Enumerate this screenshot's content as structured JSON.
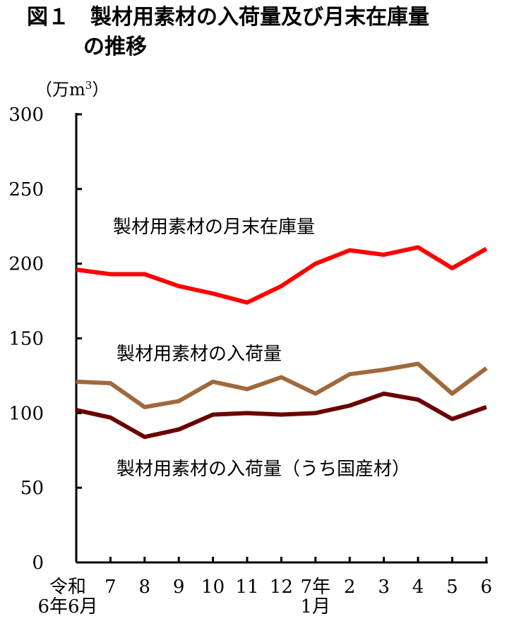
{
  "chart_data": {
    "type": "line",
    "title_line1": "図１　製材用素材の入荷量及び月末在庫量",
    "title_line2": "の推移",
    "unit": "（万m",
    "unit_sup": "3",
    "unit_close": "）",
    "ylim": [
      0,
      300
    ],
    "yticks": [
      "0",
      "50",
      "100",
      "150",
      "200",
      "250",
      "300"
    ],
    "categories": [
      [
        "令和",
        "6年6月"
      ],
      [
        "7"
      ],
      [
        "8"
      ],
      [
        "9"
      ],
      [
        "10"
      ],
      [
        "11"
      ],
      [
        "12"
      ],
      [
        "7年",
        "1月"
      ],
      [
        "2"
      ],
      [
        "3"
      ],
      [
        "4"
      ],
      [
        "5"
      ],
      [
        "6"
      ]
    ],
    "series": [
      {
        "name": "製材用素材の月末在庫量",
        "color": "#ff0000",
        "values": [
          196,
          193,
          193,
          185,
          180,
          174,
          185,
          200,
          209,
          206,
          211,
          197,
          210
        ]
      },
      {
        "name": "製材用素材の入荷量",
        "color": "#a0693c",
        "values": [
          121,
          120,
          104,
          108,
          121,
          116,
          124,
          113,
          126,
          129,
          133,
          113,
          130
        ]
      },
      {
        "name": "製材用素材の入荷量（うち国産材）",
        "color": "#6b0000",
        "values": [
          102,
          97,
          84,
          89,
          99,
          100,
          99,
          100,
          105,
          113,
          109,
          96,
          104
        ]
      }
    ]
  }
}
